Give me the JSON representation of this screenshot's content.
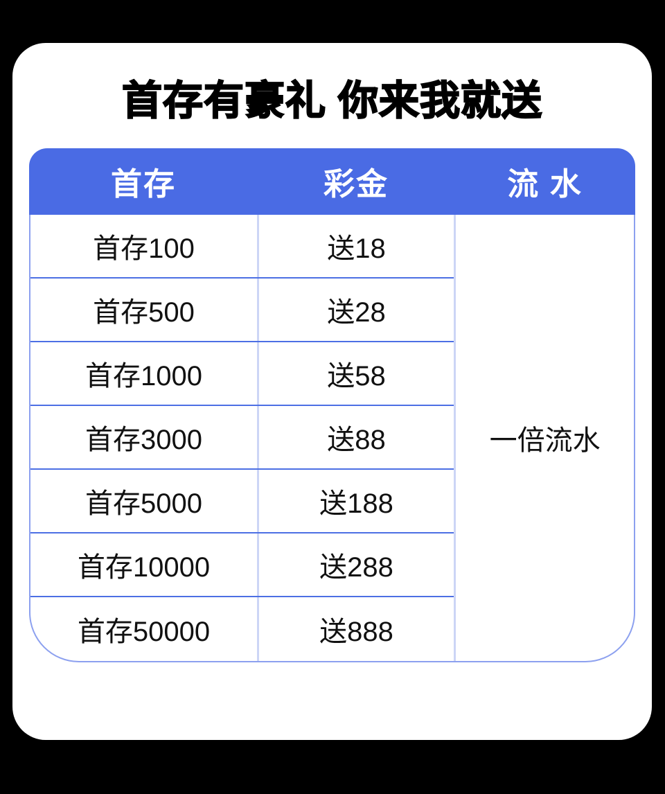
{
  "colors": {
    "page_bg": "#000000",
    "card_bg": "#ffffff",
    "header_bg": "#4a6be4",
    "header_text": "#ffffff",
    "body_text": "#111111",
    "h_divider": "#4c6fe4",
    "v_divider": "#ccd5f6",
    "outer_border": "#8ca0ef"
  },
  "title": "首存有豪礼 你来我就送",
  "table": {
    "header": {
      "deposit": "首存",
      "bonus": "彩金",
      "turnover": "流 水"
    },
    "rows": [
      {
        "deposit": "首存100",
        "bonus": "送18"
      },
      {
        "deposit": "首存500",
        "bonus": "送28"
      },
      {
        "deposit": "首存1000",
        "bonus": "送58"
      },
      {
        "deposit": "首存3000",
        "bonus": "送88"
      },
      {
        "deposit": "首存5000",
        "bonus": "送188"
      },
      {
        "deposit": "首存10000",
        "bonus": "送288"
      },
      {
        "deposit": "首存50000",
        "bonus": "送888"
      }
    ],
    "turnover_value": "一倍流水"
  }
}
